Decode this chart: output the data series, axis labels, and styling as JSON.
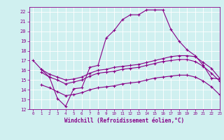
{
  "xlabel": "Windchill (Refroidissement éolien,°C)",
  "bg_color": "#d0f0f0",
  "line_color": "#880088",
  "xlim": [
    -0.5,
    23
  ],
  "ylim": [
    12,
    22.5
  ],
  "xticks": [
    0,
    1,
    2,
    3,
    4,
    5,
    6,
    7,
    8,
    9,
    10,
    11,
    12,
    13,
    14,
    15,
    16,
    17,
    18,
    19,
    20,
    21,
    22,
    23
  ],
  "yticks": [
    12,
    13,
    14,
    15,
    16,
    17,
    18,
    19,
    20,
    21,
    22
  ],
  "series1_x": [
    0,
    1,
    2,
    3,
    4,
    5,
    6,
    7,
    8,
    9,
    10,
    11,
    12,
    13,
    14,
    15,
    16,
    17,
    18,
    19,
    20,
    21,
    22,
    23
  ],
  "series1_y": [
    17.0,
    16.1,
    15.3,
    13.1,
    12.3,
    14.1,
    14.2,
    16.3,
    16.5,
    19.3,
    20.1,
    21.2,
    21.7,
    21.7,
    22.2,
    22.2,
    22.2,
    20.2,
    19.0,
    18.1,
    17.5,
    16.5,
    15.2,
    15.1
  ],
  "series2_x": [
    1,
    2,
    3,
    4,
    5,
    6,
    7,
    8,
    9,
    10,
    11,
    12,
    13,
    14,
    15,
    16,
    17,
    18,
    19,
    20,
    21,
    22,
    23
  ],
  "series2_y": [
    16.1,
    15.6,
    15.3,
    15.0,
    15.1,
    15.3,
    15.7,
    16.0,
    16.1,
    16.3,
    16.4,
    16.5,
    16.6,
    16.8,
    17.0,
    17.2,
    17.4,
    17.5,
    17.5,
    17.4,
    16.8,
    16.2,
    15.2
  ],
  "series3_x": [
    1,
    2,
    3,
    4,
    5,
    6,
    7,
    8,
    9,
    10,
    11,
    12,
    13,
    14,
    15,
    16,
    17,
    18,
    19,
    20,
    21,
    22,
    23
  ],
  "series3_y": [
    15.8,
    15.3,
    15.0,
    14.6,
    14.8,
    15.0,
    15.4,
    15.7,
    15.8,
    15.9,
    16.1,
    16.2,
    16.3,
    16.5,
    16.7,
    16.9,
    17.0,
    17.1,
    17.1,
    16.9,
    16.4,
    15.7,
    14.9
  ],
  "series4_x": [
    1,
    2,
    3,
    4,
    5,
    6,
    7,
    8,
    9,
    10,
    11,
    12,
    13,
    14,
    15,
    16,
    17,
    18,
    19,
    20,
    21,
    22,
    23
  ],
  "series4_y": [
    14.5,
    14.2,
    13.8,
    13.4,
    13.5,
    13.7,
    14.0,
    14.2,
    14.3,
    14.4,
    14.6,
    14.7,
    14.8,
    15.0,
    15.2,
    15.3,
    15.4,
    15.5,
    15.5,
    15.3,
    14.9,
    14.3,
    13.5
  ]
}
